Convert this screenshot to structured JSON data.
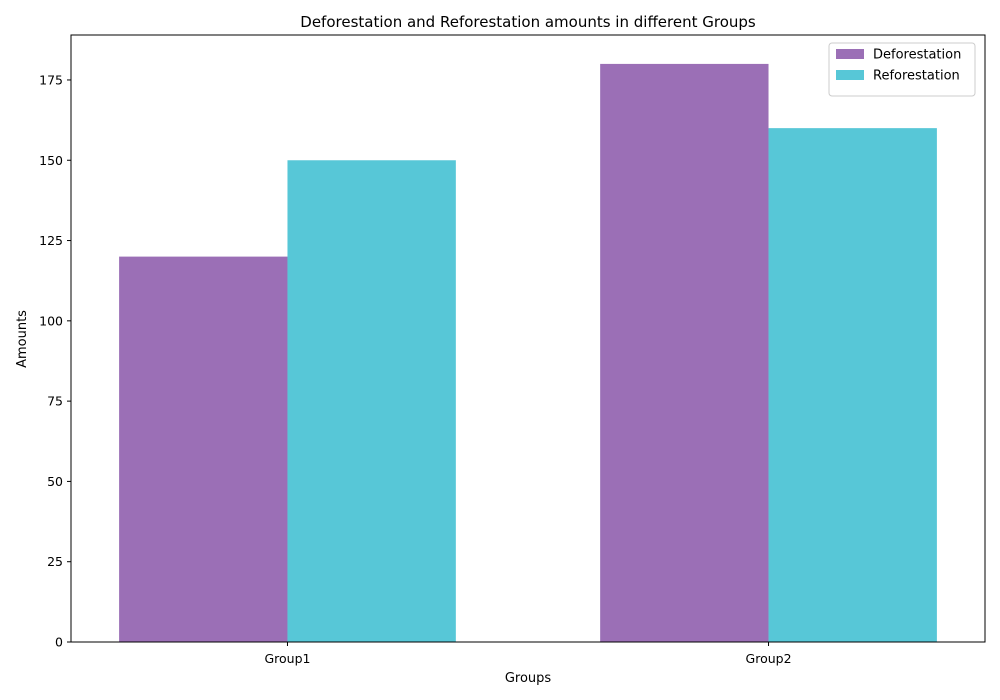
{
  "chart_data": {
    "type": "bar",
    "title": "Deforestation and Reforestation amounts in different Groups",
    "xlabel": "Groups",
    "ylabel": "Amounts",
    "categories": [
      "Group1",
      "Group2"
    ],
    "series": [
      {
        "name": "Deforestation",
        "color": "#9b6fb6",
        "values": [
          120,
          180
        ]
      },
      {
        "name": "Reforestation",
        "color": "#57c7d7",
        "values": [
          150,
          160
        ]
      }
    ],
    "ylim": [
      0,
      189
    ],
    "yticks": [
      0,
      25,
      50,
      75,
      100,
      125,
      150,
      175
    ],
    "grid": false,
    "legend_position": "top-right"
  }
}
